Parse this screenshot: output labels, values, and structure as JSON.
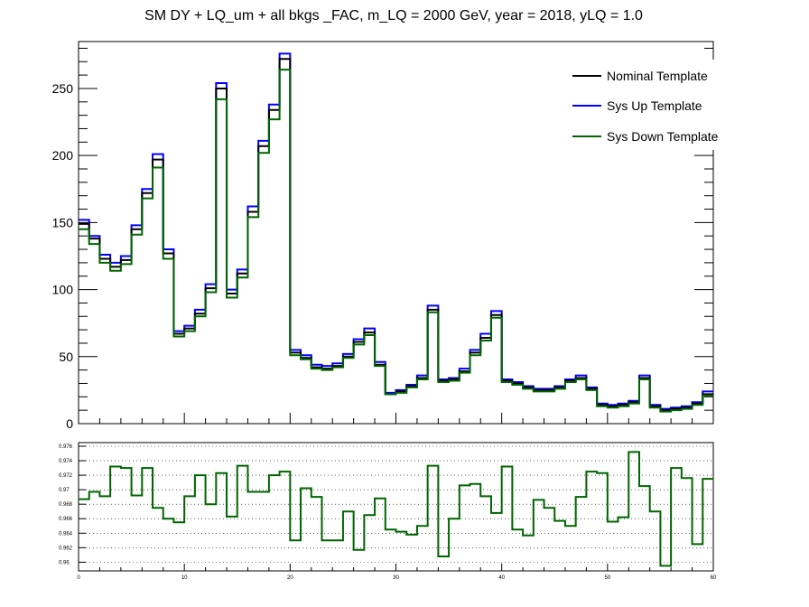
{
  "title": "SM DY + LQ_um + all bkgs  _FAC, m_LQ = 2000 GeV, year = 2018, yLQ = 1.0",
  "legend": {
    "nominal": "Nominal Template",
    "up": "Sys Up Template",
    "down": "Sys Down Template"
  },
  "colors": {
    "nominal": "#000000",
    "up": "#0000ff",
    "down": "#006400"
  },
  "chart_data": [
    {
      "type": "line",
      "panel": "main",
      "title": "SM DY + LQ_um + all bkgs  _FAC, m_LQ = 2000 GeV, year = 2018, yLQ = 1.0",
      "xlabel": "",
      "ylabel": "",
      "xlim": [
        0,
        60
      ],
      "ylim": [
        0,
        285
      ],
      "x_tick_labels": [],
      "y_ticks": [
        0,
        50,
        100,
        150,
        200,
        250
      ],
      "legend": "top-right",
      "bin_edges": [
        0,
        1,
        2,
        3,
        4,
        5,
        6,
        7,
        8,
        9,
        10,
        11,
        12,
        13,
        14,
        15,
        16,
        17,
        18,
        19,
        20,
        21,
        22,
        23,
        24,
        25,
        26,
        27,
        28,
        29,
        30,
        31,
        32,
        33,
        34,
        35,
        36,
        37,
        38,
        39,
        40,
        41,
        42,
        43,
        44,
        45,
        46,
        47,
        48,
        49,
        50,
        51,
        52,
        53,
        54,
        55,
        56,
        57,
        58,
        59,
        60
      ],
      "series": [
        {
          "name": "Nominal Template",
          "values": [
            149,
            138,
            123,
            117,
            122,
            145,
            172,
            197,
            127,
            67,
            71,
            82,
            101,
            250,
            97,
            112,
            158,
            207,
            234,
            272,
            53,
            49,
            42,
            41,
            43,
            50,
            61,
            68,
            44,
            22,
            24,
            28,
            34,
            85,
            32,
            33,
            39,
            53,
            64,
            81,
            32,
            30,
            27,
            25,
            25,
            27,
            32,
            34,
            26,
            14,
            13,
            14,
            16,
            34,
            13,
            10,
            11,
            12,
            15,
            22
          ]
        },
        {
          "name": "Sys Up Template",
          "values": [
            152,
            140,
            126,
            120,
            125,
            148,
            175,
            201,
            130,
            69,
            73,
            85,
            104,
            254,
            100,
            115,
            162,
            211,
            238,
            276,
            55,
            51,
            44,
            43,
            45,
            52,
            63,
            71,
            46,
            23,
            25,
            29,
            36,
            88,
            33,
            34,
            41,
            55,
            67,
            84,
            33,
            31,
            28,
            26,
            26,
            28,
            33,
            36,
            27,
            15,
            14,
            15,
            17,
            36,
            14,
            11,
            12,
            13,
            16,
            24
          ]
        },
        {
          "name": "Sys Down Template",
          "values": [
            145,
            134,
            120,
            114,
            119,
            141,
            168,
            191,
            123,
            65,
            69,
            80,
            98,
            242,
            94,
            109,
            154,
            202,
            227,
            264,
            51,
            48,
            41,
            40,
            42,
            49,
            59,
            66,
            43,
            22,
            23,
            27,
            33,
            83,
            31,
            32,
            38,
            51,
            62,
            79,
            31,
            29,
            26,
            24,
            24,
            26,
            31,
            33,
            25,
            13,
            12,
            13,
            15,
            33,
            12,
            9,
            10,
            11,
            14,
            21
          ]
        }
      ]
    },
    {
      "type": "line",
      "panel": "ratio",
      "xlabel": "",
      "ylabel": "",
      "xlim": [
        0,
        60
      ],
      "ylim": [
        0.9588,
        0.9765
      ],
      "x_ticks": [
        0,
        10,
        20,
        30,
        40,
        50,
        60
      ],
      "y_ticks": [
        0.96,
        0.962,
        0.964,
        0.966,
        0.968,
        0.97,
        0.972,
        0.974,
        0.976
      ],
      "y_tick_labels": [
        "0.96",
        "0.962",
        "0.964",
        "0.966",
        "0.968",
        "0.97",
        "0.972",
        "0.974",
        "0.976"
      ],
      "grid": "horizontal dotted",
      "bin_edges": [
        0,
        1,
        2,
        3,
        4,
        5,
        6,
        7,
        8,
        9,
        10,
        11,
        12,
        13,
        14,
        15,
        16,
        17,
        18,
        19,
        20,
        21,
        22,
        23,
        24,
        25,
        26,
        27,
        28,
        29,
        30,
        31,
        32,
        33,
        34,
        35,
        36,
        37,
        38,
        39,
        40,
        41,
        42,
        43,
        44,
        45,
        46,
        47,
        48,
        49,
        50,
        51,
        52,
        53,
        54,
        55,
        56,
        57,
        58,
        59,
        60
      ],
      "series": [
        {
          "name": "Sys Down Template",
          "values": [
            0.9687,
            0.9697,
            0.9691,
            0.9732,
            0.973,
            0.9692,
            0.973,
            0.9675,
            0.966,
            0.9655,
            0.9691,
            0.972,
            0.968,
            0.9723,
            0.9663,
            0.9733,
            0.9697,
            0.9697,
            0.972,
            0.9725,
            0.963,
            0.9702,
            0.969,
            0.963,
            0.963,
            0.967,
            0.9617,
            0.9665,
            0.9688,
            0.9645,
            0.9642,
            0.9638,
            0.965,
            0.9733,
            0.9608,
            0.966,
            0.9706,
            0.9708,
            0.9691,
            0.9668,
            0.9732,
            0.9645,
            0.9637,
            0.9686,
            0.9675,
            0.9657,
            0.965,
            0.969,
            0.9725,
            0.9723,
            0.9656,
            0.9662,
            0.9752,
            0.9705,
            0.967,
            0.9595,
            0.973,
            0.9716,
            0.9625,
            0.9715
          ]
        }
      ]
    }
  ]
}
